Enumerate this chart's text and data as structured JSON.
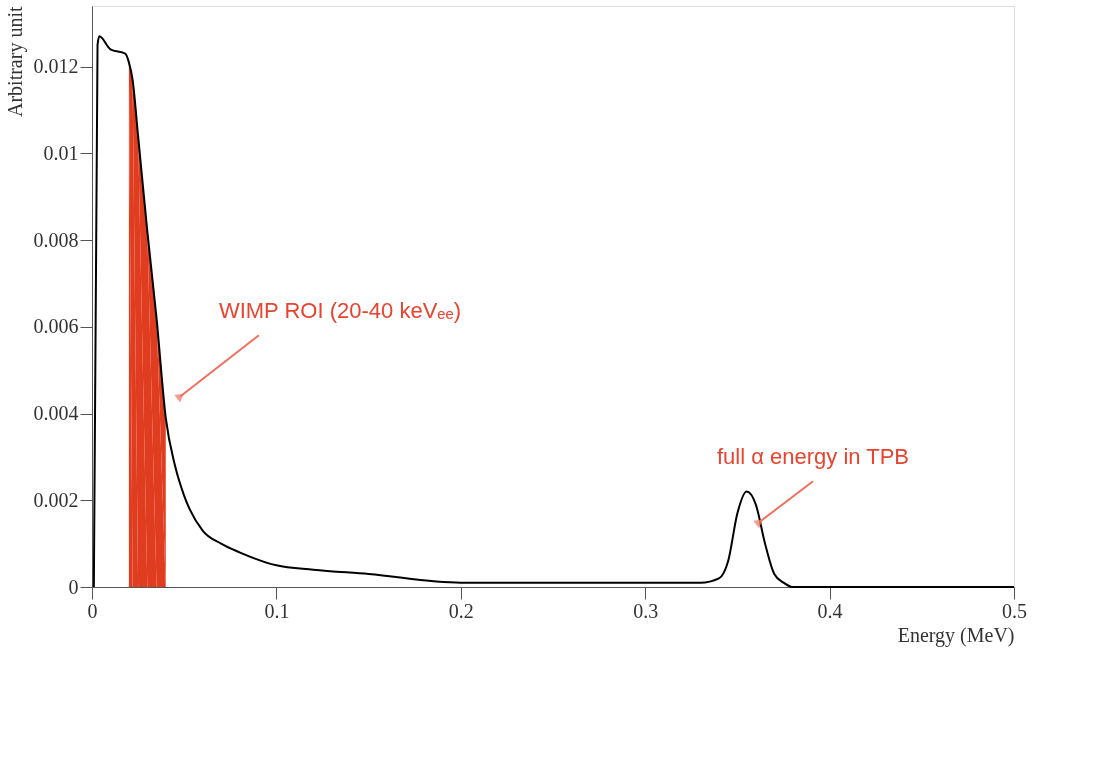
{
  "chart_data": {
    "type": "line",
    "xlabel": "Energy (MeV)",
    "ylabel": "Arbitrary unit",
    "xlim": [
      0,
      0.5
    ],
    "xticks": [
      0,
      0.1,
      0.2,
      0.3,
      0.4,
      0.5
    ],
    "ylim": [
      0,
      0.0134
    ],
    "yticks": [
      0,
      0.002,
      0.004,
      0.006,
      0.008,
      0.01,
      0.012
    ],
    "grid": false,
    "series": [
      {
        "color": "#000000",
        "x": [
          0.001,
          0.003,
          0.004,
          0.01,
          0.018,
          0.02,
          0.022,
          0.025,
          0.03,
          0.035,
          0.04,
          0.045,
          0.05,
          0.06,
          0.07,
          0.08,
          0.1,
          0.12,
          0.15,
          0.2,
          0.25,
          0.3,
          0.33,
          0.34,
          0.345,
          0.35,
          0.355,
          0.36,
          0.365,
          0.37,
          0.375,
          0.38,
          0.5
        ],
        "values": [
          0,
          0.0125,
          0.0127,
          0.0124,
          0.0123,
          0.0121,
          0.0117,
          0.0104,
          0.0082,
          0.0062,
          0.0039,
          0.0028,
          0.0021,
          0.0013,
          0.001,
          0.0008,
          0.0005,
          0.0004,
          0.0003,
          0.0001,
          0.0001,
          0.0001,
          0.0001,
          0.0002,
          0.0006,
          0.0017,
          0.0022,
          0.0019,
          0.001,
          0.0003,
          0.0001,
          0,
          0
        ]
      },
      {
        "type": "area",
        "color": "#e03c1f",
        "x": [
          0.02,
          0.022,
          0.025,
          0.03,
          0.035,
          0.04
        ],
        "values": [
          0.0121,
          0.0117,
          0.0104,
          0.0082,
          0.0062,
          0.0039
        ]
      }
    ],
    "annotations": [
      {
        "text": "WIMP ROI (20-40 keVₑₑ)",
        "x": 0.048,
        "y": 0.0044
      },
      {
        "text": "full α energy in TPB",
        "x": 0.362,
        "y": 0.0015
      }
    ]
  }
}
